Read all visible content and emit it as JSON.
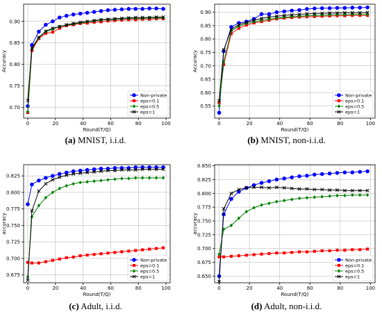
{
  "chart_data": [
    {
      "type": "line",
      "caption_tag": "(a)",
      "caption_text": " MNIST, i.i.d.",
      "xlabel": "Round(T/Q)",
      "ylabel": "Accuracy",
      "xlim": [
        -3,
        103
      ],
      "ylim": [
        0.675,
        0.94
      ],
      "xticks": [
        0,
        20,
        40,
        60,
        80,
        100
      ],
      "yticks": [
        0.7,
        0.75,
        0.8,
        0.85,
        0.9
      ],
      "ytick_labels": [
        "0.70",
        "0.75",
        "0.80",
        "0.85",
        "0.90"
      ],
      "legend": "lower-right",
      "x": [
        0,
        3,
        8,
        13,
        18,
        23,
        28,
        33,
        38,
        43,
        48,
        53,
        58,
        63,
        68,
        73,
        78,
        83,
        88,
        93,
        98
      ],
      "series": [
        {
          "name": "Non-private",
          "color": "#0000ff",
          "marker": "circle",
          "values": [
            0.703,
            0.845,
            0.876,
            0.892,
            0.9,
            0.909,
            0.913,
            0.916,
            0.918,
            0.92,
            0.922,
            0.924,
            0.926,
            0.927,
            0.928,
            0.929,
            0.929,
            0.929,
            0.93,
            0.93,
            0.929
          ]
        },
        {
          "name": "eps=0.1",
          "color": "#ff0000",
          "marker": "square",
          "values": [
            0.688,
            0.832,
            0.86,
            0.872,
            0.875,
            0.884,
            0.89,
            0.892,
            0.895,
            0.896,
            0.898,
            0.899,
            0.901,
            0.902,
            0.903,
            0.904,
            0.904,
            0.905,
            0.905,
            0.906,
            0.906
          ]
        },
        {
          "name": "eps=0.5",
          "color": "#008000",
          "marker": "diamond",
          "values": [
            0.69,
            0.835,
            0.862,
            0.876,
            0.882,
            0.888,
            0.891,
            0.894,
            0.896,
            0.899,
            0.901,
            0.903,
            0.904,
            0.905,
            0.906,
            0.907,
            0.907,
            0.907,
            0.908,
            0.908,
            0.908
          ]
        },
        {
          "name": "eps=1",
          "color": "#000000",
          "marker": "x",
          "values": [
            0.716,
            0.838,
            0.863,
            0.877,
            0.884,
            0.888,
            0.892,
            0.895,
            0.898,
            0.9,
            0.902,
            0.904,
            0.905,
            0.906,
            0.907,
            0.908,
            0.909,
            0.909,
            0.909,
            0.91,
            0.91
          ]
        }
      ]
    },
    {
      "type": "line",
      "caption_tag": "(b)",
      "caption_text": " MNIST, non-i.i.d.",
      "xlabel": "Round(T/Q)",
      "ylabel": "Accuracy",
      "xlim": [
        -3,
        103
      ],
      "ylim": [
        0.505,
        0.93
      ],
      "xticks": [
        0,
        20,
        40,
        60,
        80,
        100
      ],
      "yticks": [
        0.55,
        0.6,
        0.65,
        0.7,
        0.75,
        0.8,
        0.85,
        0.9
      ],
      "ytick_labels": [
        "0.55",
        "0.60",
        "0.65",
        "0.70",
        "0.75",
        "0.80",
        "0.85",
        "0.90"
      ],
      "legend": "lower-right",
      "x": [
        0,
        3,
        8,
        13,
        18,
        23,
        28,
        33,
        38,
        43,
        48,
        53,
        58,
        63,
        68,
        73,
        78,
        83,
        88,
        93,
        98
      ],
      "series": [
        {
          "name": "Non-private",
          "color": "#0000ff",
          "marker": "circle",
          "values": [
            0.525,
            0.755,
            0.845,
            0.86,
            0.865,
            0.875,
            0.893,
            0.893,
            0.9,
            0.903,
            0.906,
            0.908,
            0.912,
            0.914,
            0.915,
            0.915,
            0.916,
            0.916,
            0.917,
            0.917,
            0.918
          ]
        },
        {
          "name": "eps=0.1",
          "color": "#ff0000",
          "marker": "square",
          "values": [
            0.562,
            0.705,
            0.82,
            0.84,
            0.852,
            0.86,
            0.865,
            0.87,
            0.875,
            0.878,
            0.88,
            0.882,
            0.883,
            0.884,
            0.885,
            0.886,
            0.887,
            0.887,
            0.888,
            0.888,
            0.888
          ]
        },
        {
          "name": "eps=0.5",
          "color": "#008000",
          "marker": "diamond",
          "values": [
            0.55,
            0.715,
            0.83,
            0.848,
            0.858,
            0.864,
            0.87,
            0.874,
            0.878,
            0.881,
            0.883,
            0.885,
            0.887,
            0.888,
            0.889,
            0.89,
            0.891,
            0.891,
            0.892,
            0.892,
            0.892
          ]
        },
        {
          "name": "eps=1",
          "color": "#000000",
          "marker": "x",
          "values": [
            0.57,
            0.76,
            0.836,
            0.853,
            0.862,
            0.87,
            0.877,
            0.882,
            0.885,
            0.888,
            0.89,
            0.892,
            0.894,
            0.895,
            0.896,
            0.897,
            0.897,
            0.898,
            0.898,
            0.898,
            0.899
          ]
        }
      ]
    },
    {
      "type": "line",
      "caption_tag": "(c)",
      "caption_text": " Adult, i.i.d.",
      "xlabel": "Round(T/Q)",
      "ylabel": "accuracy",
      "xlim": [
        -3,
        103
      ],
      "ylim": [
        0.663,
        0.842
      ],
      "xticks": [
        0,
        20,
        40,
        60,
        80,
        100
      ],
      "yticks": [
        0.675,
        0.7,
        0.725,
        0.75,
        0.775,
        0.8,
        0.825
      ],
      "ytick_labels": [
        "0.675",
        "0.700",
        "0.725",
        "0.750",
        "0.775",
        "0.800",
        "0.825"
      ],
      "legend": "lower-right",
      "x": [
        0,
        3,
        8,
        13,
        18,
        23,
        28,
        33,
        38,
        43,
        48,
        53,
        58,
        63,
        68,
        73,
        78,
        83,
        88,
        93,
        98
      ],
      "series": [
        {
          "name": "Non-private",
          "color": "#0000ff",
          "marker": "circle",
          "values": [
            0.782,
            0.812,
            0.818,
            0.822,
            0.825,
            0.828,
            0.83,
            0.832,
            0.833,
            0.834,
            0.835,
            0.836,
            0.836,
            0.837,
            0.837,
            0.837,
            0.838,
            0.838,
            0.838,
            0.838,
            0.838
          ]
        },
        {
          "name": "eps=0.1",
          "color": "#ff0000",
          "marker": "square",
          "values": [
            0.694,
            0.693,
            0.693,
            0.695,
            0.697,
            0.699,
            0.701,
            0.702,
            0.704,
            0.705,
            0.706,
            0.707,
            0.708,
            0.709,
            0.71,
            0.711,
            0.712,
            0.713,
            0.714,
            0.715,
            0.716
          ]
        },
        {
          "name": "eps=0.5",
          "color": "#008000",
          "marker": "diamond",
          "values": [
            0.672,
            0.763,
            0.78,
            0.792,
            0.8,
            0.806,
            0.81,
            0.813,
            0.815,
            0.816,
            0.817,
            0.818,
            0.819,
            0.82,
            0.821,
            0.821,
            0.822,
            0.822,
            0.822,
            0.822,
            0.822
          ]
        },
        {
          "name": "eps=1",
          "color": "#000000",
          "marker": "x",
          "values": [
            0.667,
            0.772,
            0.802,
            0.813,
            0.819,
            0.823,
            0.826,
            0.828,
            0.829,
            0.83,
            0.831,
            0.832,
            0.833,
            0.833,
            0.834,
            0.834,
            0.834,
            0.835,
            0.835,
            0.835,
            0.835
          ]
        }
      ]
    },
    {
      "type": "line",
      "caption_tag": "(d)",
      "caption_text": " Adult, non-i.i.d.",
      "xlabel": "Round(T/Q)",
      "ylabel": "accuracy",
      "xlim": [
        -3,
        103
      ],
      "ylim": [
        0.638,
        0.852
      ],
      "xticks": [
        0,
        20,
        40,
        60,
        80,
        100
      ],
      "yticks": [
        0.65,
        0.675,
        0.7,
        0.725,
        0.75,
        0.775,
        0.8,
        0.825,
        0.85
      ],
      "ytick_labels": [
        "0.650",
        "0.675",
        "0.700",
        "0.725",
        "0.750",
        "0.775",
        "0.800",
        "0.825",
        "0.850"
      ],
      "legend": "lower-right",
      "x": [
        0,
        3,
        8,
        13,
        18,
        23,
        28,
        33,
        38,
        43,
        48,
        53,
        58,
        63,
        68,
        73,
        78,
        83,
        88,
        93,
        98
      ],
      "series": [
        {
          "name": "Non-private",
          "color": "#0000ff",
          "marker": "circle",
          "values": [
            0.65,
            0.762,
            0.79,
            0.803,
            0.81,
            0.815,
            0.819,
            0.822,
            0.825,
            0.827,
            0.829,
            0.831,
            0.832,
            0.834,
            0.835,
            0.836,
            0.837,
            0.838,
            0.838,
            0.839,
            0.84
          ]
        },
        {
          "name": "eps=0.1",
          "color": "#ff0000",
          "marker": "square",
          "values": [
            0.685,
            0.685,
            0.686,
            0.687,
            0.688,
            0.689,
            0.69,
            0.691,
            0.692,
            0.692,
            0.693,
            0.694,
            0.694,
            0.695,
            0.696,
            0.696,
            0.697,
            0.697,
            0.698,
            0.698,
            0.699
          ]
        },
        {
          "name": "eps=0.5",
          "color": "#008000",
          "marker": "diamond",
          "values": [
            0.69,
            0.735,
            0.742,
            0.755,
            0.767,
            0.774,
            0.779,
            0.782,
            0.785,
            0.787,
            0.789,
            0.791,
            0.792,
            0.793,
            0.794,
            0.795,
            0.796,
            0.796,
            0.797,
            0.797,
            0.797
          ]
        },
        {
          "name": "eps=1",
          "color": "#000000",
          "marker": "x",
          "values": [
            0.64,
            0.772,
            0.8,
            0.807,
            0.81,
            0.811,
            0.811,
            0.81,
            0.811,
            0.81,
            0.809,
            0.808,
            0.808,
            0.807,
            0.807,
            0.806,
            0.806,
            0.805,
            0.805,
            0.805,
            0.805
          ]
        }
      ]
    }
  ]
}
